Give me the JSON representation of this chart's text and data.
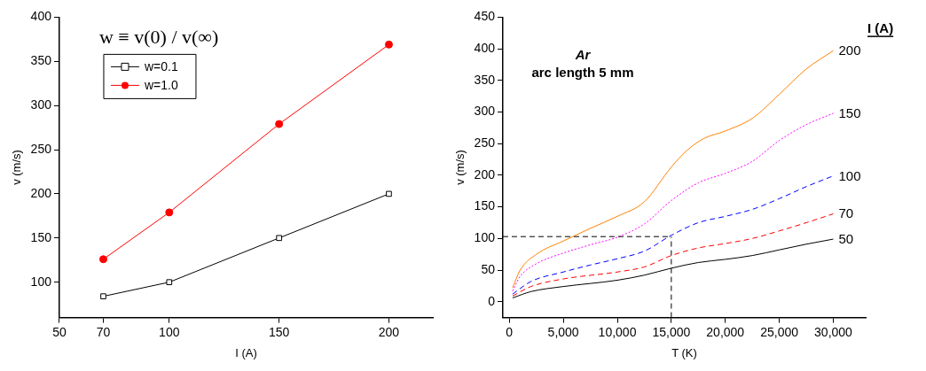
{
  "chart_data": [
    {
      "type": "line",
      "legend_title": "w ≡ v(0) / v(∞)",
      "xlabel": "I (A)",
      "ylabel": "v (m/s)",
      "legend": "top left",
      "grid": false,
      "x": [
        70,
        100,
        150,
        200
      ],
      "xlim": [
        50,
        220
      ],
      "xticks": [
        50,
        70,
        100,
        150,
        200
      ],
      "ylim": [
        60,
        400
      ],
      "yticks": [
        100,
        150,
        200,
        250,
        300,
        350,
        400
      ],
      "series": [
        {
          "name": "w=0.1",
          "color": "#000000",
          "marker": "square",
          "values": [
            84,
            100,
            150,
            200
          ]
        },
        {
          "name": "w=1.0",
          "color": "#ff0000",
          "marker": "circle",
          "values": [
            126,
            179,
            279,
            369
          ]
        }
      ]
    },
    {
      "type": "line",
      "legend_title": "I (A)",
      "xlabel": "T (K)",
      "ylabel": "v (m/s)",
      "legend": "right",
      "grid": false,
      "marker": "none",
      "annotations": [
        "Ar",
        "arc length 5 mm"
      ],
      "xlim": [
        -600,
        33000
      ],
      "xticks": [
        0,
        {
          "value": 5000,
          "label": "5,000"
        },
        {
          "value": 10000,
          "label": "10,000"
        },
        {
          "value": 15000,
          "label": "15,000"
        },
        {
          "value": 20000,
          "label": "20,000"
        },
        {
          "value": 25000,
          "label": "25,000"
        },
        {
          "value": 30000,
          "label": "30,000"
        }
      ],
      "ylim": [
        -25,
        450
      ],
      "yticks": [
        0,
        50,
        100,
        150,
        200,
        250,
        300,
        350,
        400,
        450
      ],
      "ref_lines": [
        {
          "axis": "x",
          "value": 15000,
          "color": "#000000",
          "line_style": "dashed"
        },
        {
          "axis": "y",
          "value": 103,
          "color": "#000000",
          "line_style": "dashed"
        }
      ],
      "series": [
        {
          "name": "200",
          "color": "#ff8000",
          "line_style": "solid",
          "x": [
            300,
            1000,
            2500,
            5000,
            7500,
            10000,
            12500,
            15000,
            16500,
            18000,
            20000,
            22500,
            25000,
            27500,
            30000
          ],
          "values": [
            22,
            50,
            75,
            96,
            116,
            135,
            158,
            213,
            240,
            258,
            270,
            290,
            328,
            368,
            397
          ]
        },
        {
          "name": "150",
          "color": "#ff00ff",
          "line_style": "dotted",
          "x": [
            300,
            1000,
            2500,
            5000,
            7500,
            10000,
            12500,
            15000,
            17500,
            20000,
            22500,
            25000,
            27500,
            30000
          ],
          "values": [
            17,
            40,
            60,
            77,
            90,
            102,
            123,
            160,
            188,
            203,
            222,
            255,
            280,
            298
          ]
        },
        {
          "name": "100",
          "color": "#0000ff",
          "line_style": "dashed",
          "x": [
            300,
            2000,
            5000,
            7500,
            10000,
            12500,
            15000,
            17500,
            20000,
            22500,
            25000,
            27500,
            30000
          ],
          "values": [
            12,
            32,
            47,
            58,
            68,
            80,
            105,
            125,
            135,
            146,
            163,
            182,
            199
          ]
        },
        {
          "name": "70",
          "color": "#ff0000",
          "line_style": "dashed",
          "x": [
            300,
            2000,
            5000,
            10000,
            12500,
            15000,
            17500,
            20000,
            22500,
            25000,
            27500,
            30000
          ],
          "values": [
            9,
            24,
            36,
            47,
            55,
            73,
            85,
            92,
            100,
            112,
            125,
            139
          ]
        },
        {
          "name": "50",
          "color": "#000000",
          "line_style": "solid",
          "x": [
            300,
            2000,
            5000,
            10000,
            12500,
            15000,
            17500,
            20000,
            22500,
            25000,
            27500,
            30000
          ],
          "values": [
            6,
            16,
            24,
            34,
            42,
            53,
            62,
            67,
            73,
            82,
            91,
            99
          ]
        }
      ]
    }
  ]
}
